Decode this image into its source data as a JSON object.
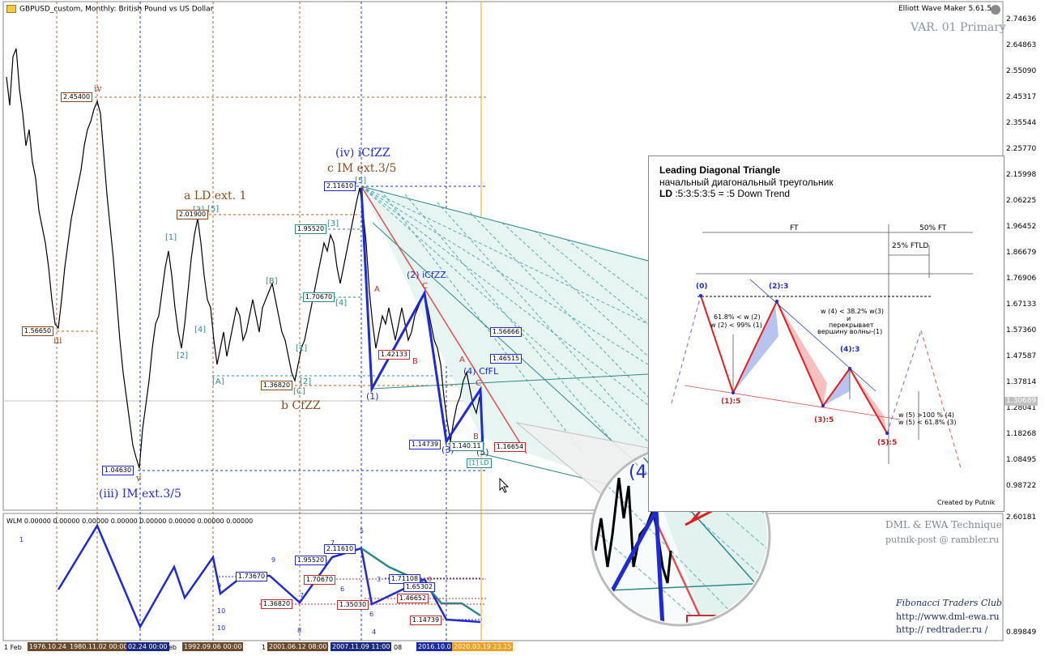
{
  "header": {
    "symbol_title": "GBPUSD_custom, Monthly:  British Pound vs US Dollar",
    "expert_name": "Elliott Wave Maker 5.61.5",
    "variant": "VAR. 01 Primary"
  },
  "price_axis": [
    "2.74636",
    "2.64863",
    "2.55090",
    "2.45317",
    "2.35544",
    "2.25770",
    "2.15998",
    "2.06225",
    "1.96452",
    "1.86679",
    "1.76906",
    "1.67133",
    "1.57360",
    "1.47587",
    "1.37814",
    "1.28041",
    "1.18268",
    "1.08495",
    "0.98722"
  ],
  "current_price": "1.30689",
  "sub_axis": [
    "2.60181",
    "0.89849"
  ],
  "wave_labels": {
    "iii_im": "(iii) IM ext.3/5",
    "iv_icfzz": "(iv) iCfZZ",
    "c_im": "c IM ext.3/5",
    "a_ld": "a LD ext. 1",
    "b_cfzz": "b CfZZ",
    "two_icfzz": "(2) iCfZZ",
    "four_cfl": "(4) CfFL",
    "roman_iv": "iv",
    "roman_iii": "iii",
    "roman_v": "v",
    "w1": "(1)",
    "w3": "(3)",
    "w5": "(5)",
    "bA": "[A]",
    "bB": "[B]",
    "bC": "[C]",
    "b1": "[1]",
    "b2": "[2]",
    "b3": "[3]",
    "b4": "[4]",
    "b5": "[5]",
    "b1b": "[1]",
    "b2b": "[2]",
    "b3b": "[3]",
    "b4b": "[4]",
    "b5b": "[5]",
    "rA": "A",
    "rB": "B",
    "rC": "C",
    "rA2": "A",
    "rB2": "B",
    "rC2": "C",
    "ld_box": "[1] LD"
  },
  "price_boxes": {
    "p245400": "2.45400",
    "p201900": "2.01900",
    "p156650": "1.56650",
    "p104630": "1.04630",
    "p211610": "2.11610",
    "p195520": "1.95520",
    "p170670": "1.70670",
    "p136820": "1.36820",
    "p156666": "1.56666",
    "p146515": "1.46515",
    "p142133": "1.42133",
    "p114739": "1.14739",
    "p114011": "1.140.11",
    "p116654": "1.16654"
  },
  "sub_window": {
    "title": "WLM 0.00000  0.00000  0.00000  0.00000  0.00000  0.00000  0.00000  0.00000",
    "boxes": {
      "s211610": "2.11610",
      "s195520": "1.95520",
      "s173670": "1.73670",
      "s170670": "1.70670",
      "s171108": "1.71108",
      "s165302": "1.65302",
      "s146652": "1.46652",
      "s136820": "1.36820",
      "s135030": "1.35030",
      "s114739": "1.14739"
    },
    "numbers": {
      "n1": "1",
      "n5": "5",
      "n7": "7",
      "n9": "9",
      "n9b": "9",
      "n10": "10",
      "n10b": "10",
      "n3": "3",
      "n6": "6",
      "n8": "8",
      "n4": "4",
      "n6b": "6",
      "n8b": "8",
      "n7b": "7"
    }
  },
  "watermark": {
    "line1": "DML & EWA Technique",
    "line2": "putnik-post @ rambler.ru",
    "line3": "Fibonacci   Traders   Club",
    "line4": "http://www.dml-ewa.ru",
    "line5": "http://  redtrader.ru  /"
  },
  "time_axis": [
    "1 Feb",
    "1976.10.24",
    "1980.11.02 00:00",
    "02.24 00:00",
    "eb",
    "1992.09.06 00:00",
    "1",
    "2001.06.12 08:00",
    "2007.11.09 11:00",
    "08",
    "2016.10.0",
    "2020.03.19 23:15"
  ],
  "inset": {
    "title": "Leading Diagonal Triangle",
    "subtitle": "начальный диагональный треугольник",
    "formula_bold": "LD",
    "formula_rest": " :5:3:5:3:5 = :5 Down Trend",
    "ft": "FT",
    "ft50": "50% FT",
    "ftld": "25% FTLD",
    "w0": "(0)",
    "w2": "(2):3",
    "w1": "(1):5",
    "w3": "(3):5",
    "w4": "(4):3",
    "w5": "(5):5",
    "rule1a": "61.8% < w (2)",
    "rule1b": "w (2) < 99% (1)",
    "rule2a": "w (4) < 38.2% w(3)",
    "rule2b": "и",
    "rule2c": "перекрывает",
    "rule2d": "вершину волны-(1)",
    "rule3a": "w (5) >100 % (4)",
    "rule3b": "w (5) < 61.8% (3)",
    "credit": "Created by Putnik"
  },
  "zoom_label": "(4) CfFL",
  "colors": {
    "wave_blue": "#1f2bd0",
    "ray_red": "#e05050",
    "channel_teal": "#2a8a8a",
    "brown": "#8b4a1a"
  }
}
